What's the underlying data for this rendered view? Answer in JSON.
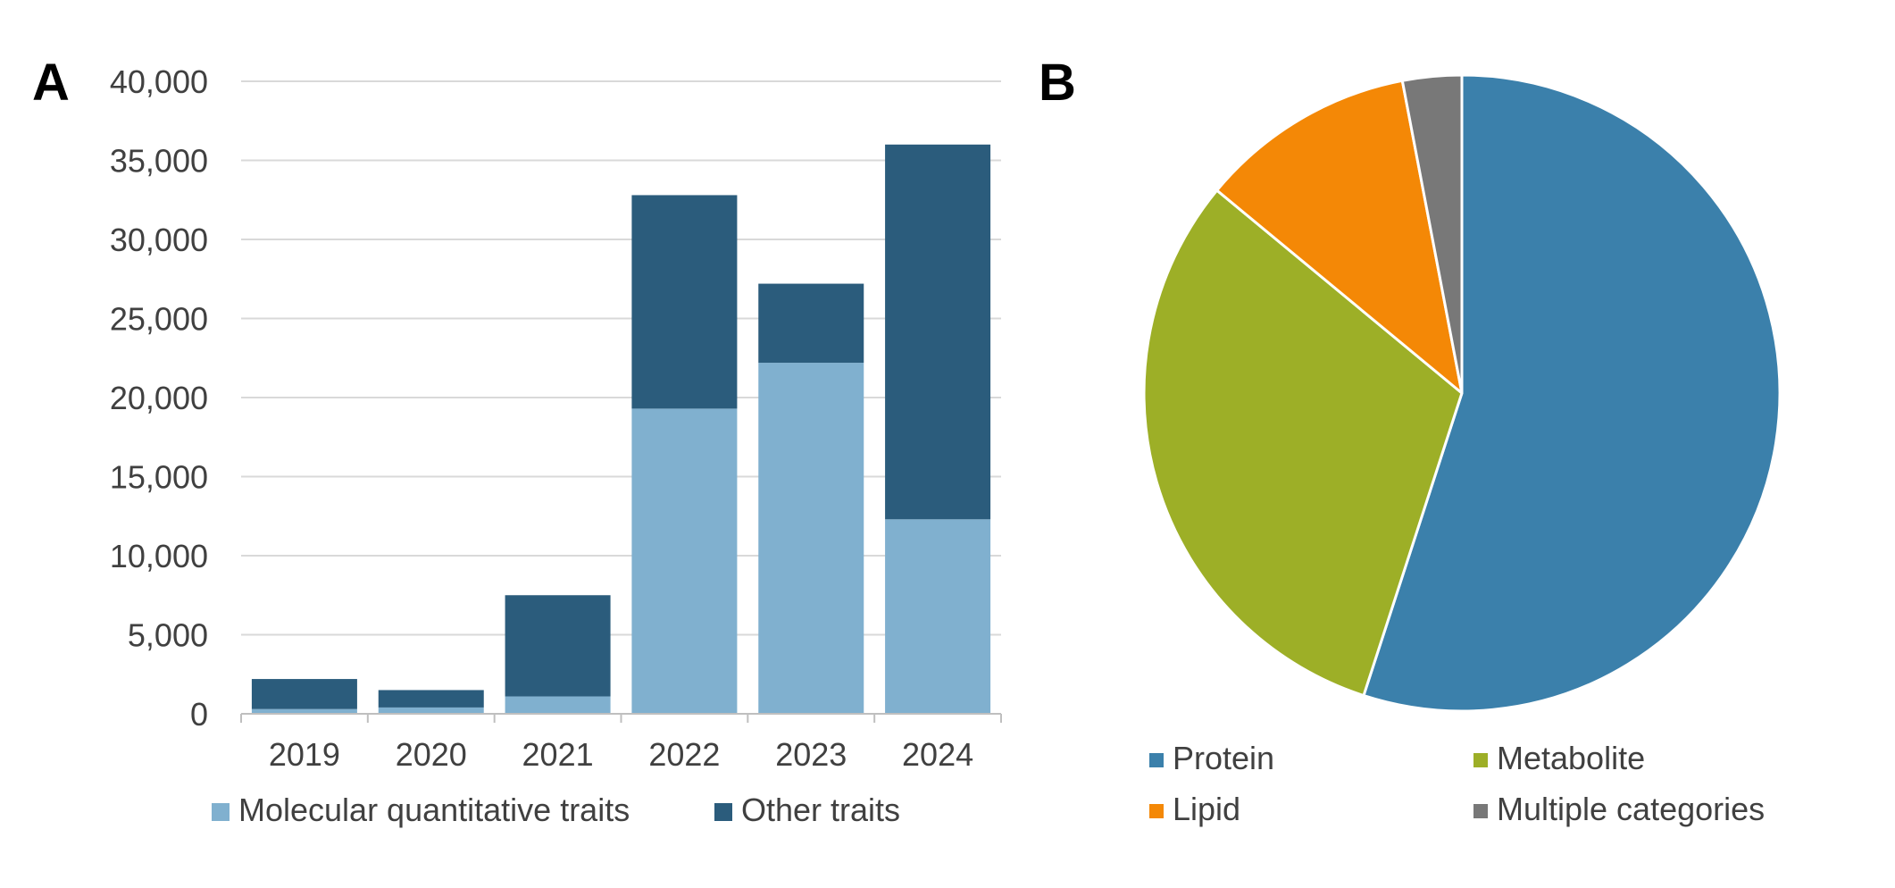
{
  "panels": {
    "a": "A",
    "b": "B"
  },
  "chart_data": [
    {
      "type": "bar",
      "stacked": true,
      "categories": [
        "2019",
        "2020",
        "2021",
        "2022",
        "2023",
        "2024"
      ],
      "series": [
        {
          "name": "Molecular quantitative traits",
          "values": [
            300,
            400,
            1100,
            19300,
            22200,
            12300
          ],
          "color": "#80b0cf"
        },
        {
          "name": "Other traits",
          "values": [
            1900,
            1100,
            6400,
            13500,
            5000,
            23700
          ],
          "color": "#2b5c7c"
        }
      ],
      "ylim": [
        0,
        40000
      ],
      "yticks": [
        0,
        5000,
        10000,
        15000,
        20000,
        25000,
        30000,
        35000,
        40000
      ],
      "ytick_labels": [
        "0",
        "5,000",
        "10,000",
        "15,000",
        "20,000",
        "25,000",
        "30,000",
        "35,000",
        "40,000"
      ],
      "grid": true,
      "legend": "bottom"
    },
    {
      "type": "pie",
      "labels": [
        "Protein",
        "Metabolite",
        "Lipid",
        "Multiple categories"
      ],
      "values": [
        55,
        31,
        11,
        3
      ],
      "colors": [
        "#3b80ab",
        "#9daf27",
        "#f48806",
        "#787878"
      ],
      "legend": "bottom"
    }
  ]
}
